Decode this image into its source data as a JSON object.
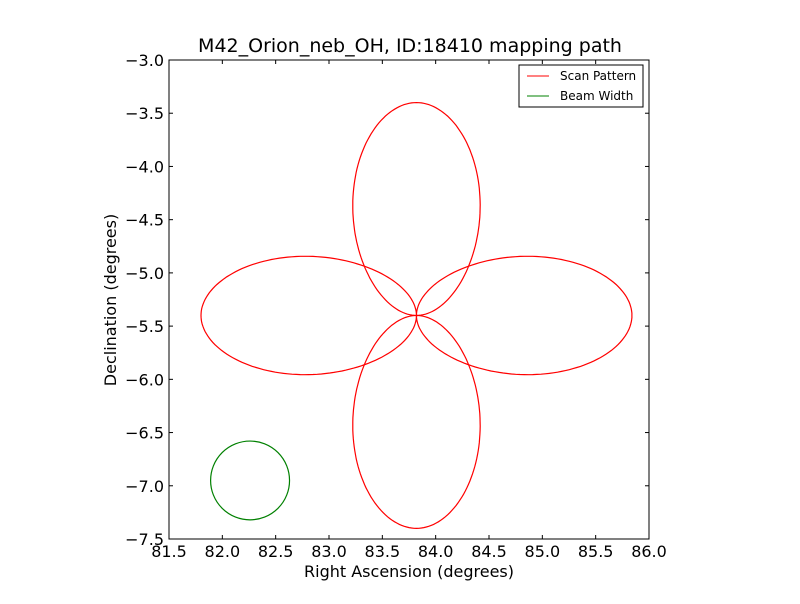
{
  "chart_data": {
    "type": "line",
    "title": "M42_Orion_neb_OH, ID:18410 mapping path",
    "xlabel": "Right Ascension (degrees)",
    "ylabel": "Declination (degrees)",
    "xlim": [
      81.5,
      86.0
    ],
    "ylim": [
      -7.5,
      -3.0
    ],
    "xticks": [
      "81.5",
      "82.0",
      "82.5",
      "83.0",
      "83.5",
      "84.0",
      "84.5",
      "85.0",
      "85.5",
      "86.0"
    ],
    "yticks": [
      "−3.0",
      "−3.5",
      "−4.0",
      "−4.5",
      "−5.0",
      "−5.5",
      "−6.0",
      "−6.5",
      "−7.0",
      "−7.5"
    ],
    "legend": {
      "placement": "top-right",
      "entries": [
        "Scan Pattern",
        "Beam Width"
      ]
    },
    "series": [
      {
        "name": "Scan Pattern",
        "color": "#ff0000",
        "center": [
          83.82,
          -5.4
        ],
        "petals": [
          {
            "direction": "north",
            "length": 2.0,
            "half_width": 0.58
          },
          {
            "direction": "east",
            "length": 2.02,
            "half_width": 0.54
          },
          {
            "direction": "south",
            "length": 2.0,
            "half_width": 0.58
          },
          {
            "direction": "west",
            "length": 2.02,
            "half_width": 0.54
          }
        ]
      },
      {
        "name": "Beam Width",
        "color": "#008000",
        "center": [
          82.26,
          -6.95
        ],
        "radius": 0.37
      }
    ]
  }
}
